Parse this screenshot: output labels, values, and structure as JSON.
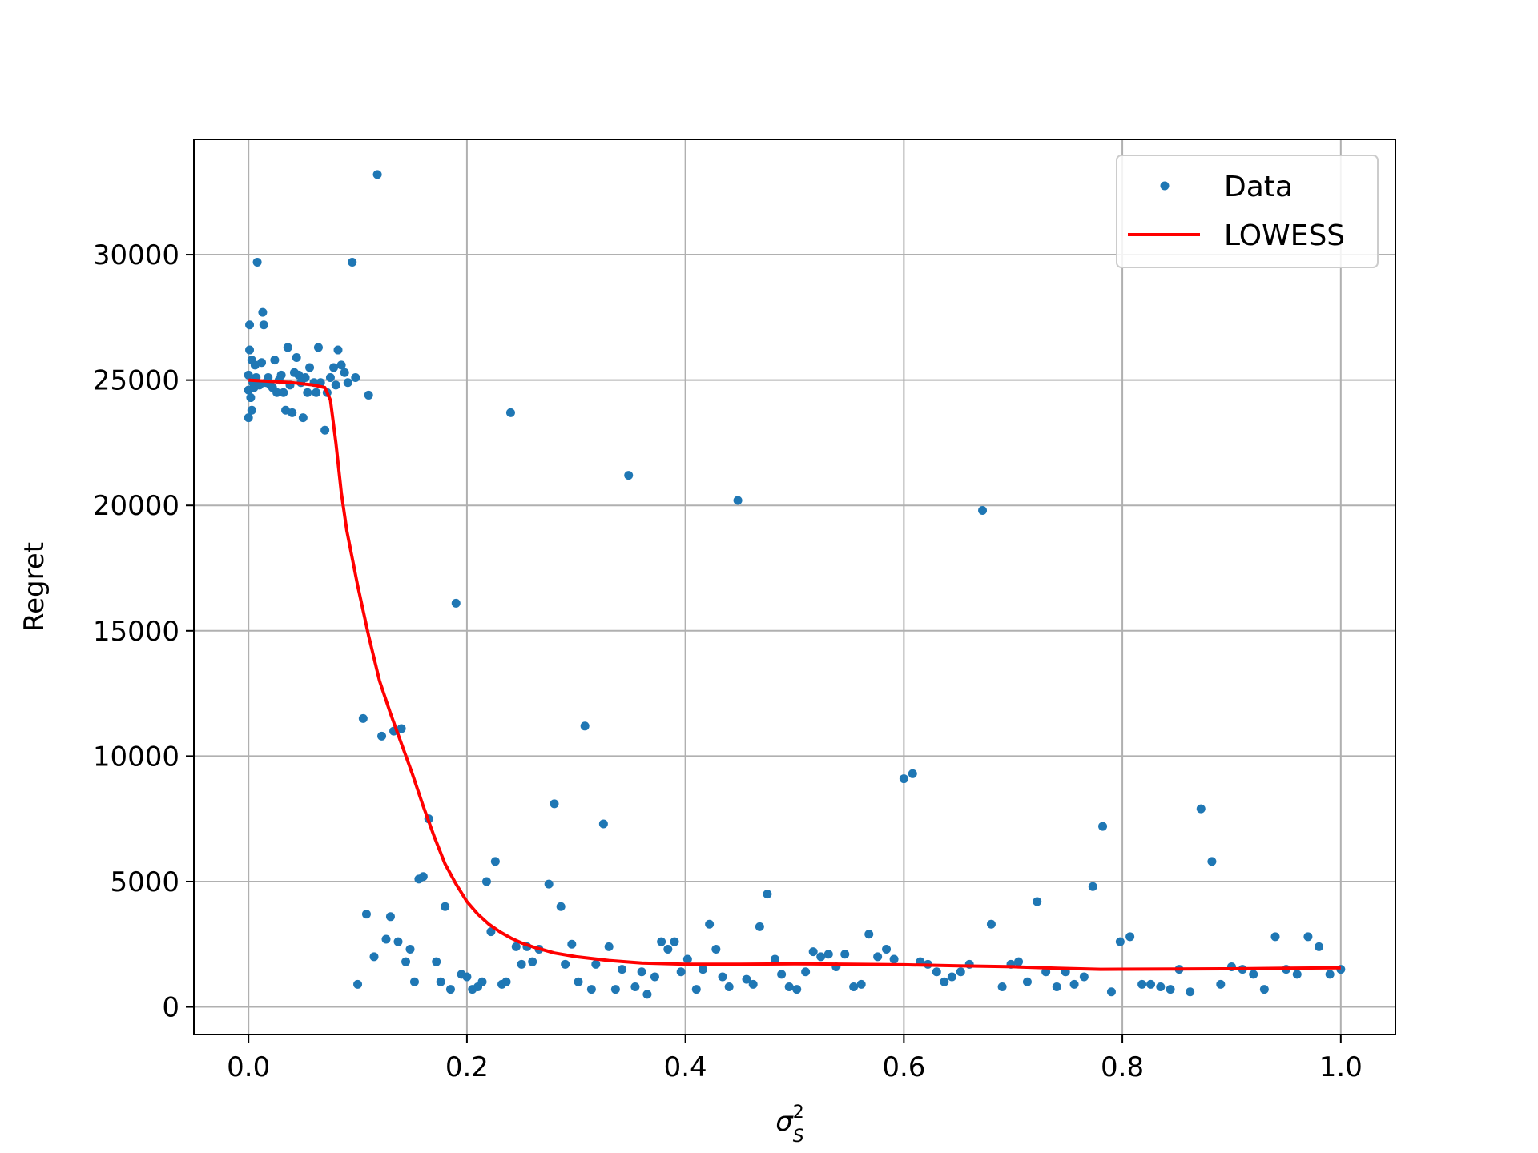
{
  "chart_data": {
    "type": "scatter",
    "title": "",
    "xlabel": "σ",
    "xlabel_sub": "S",
    "xlabel_sup": "2",
    "ylabel": "Regret",
    "xlim": [
      -0.05,
      1.05
    ],
    "ylim": [
      -1100,
      34600
    ],
    "grid": true,
    "legend_position": "top-right",
    "x_ticks": [
      0.0,
      0.2,
      0.4,
      0.6,
      0.8,
      1.0
    ],
    "x_tick_labels": [
      "0.0",
      "0.2",
      "0.4",
      "0.6",
      "0.8",
      "1.0"
    ],
    "y_ticks": [
      0,
      5000,
      10000,
      15000,
      20000,
      25000,
      30000
    ],
    "y_tick_labels": [
      "0",
      "5000",
      "10000",
      "15000",
      "20000",
      "25000",
      "30000"
    ],
    "series": [
      {
        "name": "Data",
        "kind": "scatter",
        "color": "#1f77b4",
        "points": [
          [
            0.0,
            24600
          ],
          [
            0.0,
            25200
          ],
          [
            0.0,
            23500
          ],
          [
            0.001,
            27200
          ],
          [
            0.001,
            26200
          ],
          [
            0.002,
            24300
          ],
          [
            0.003,
            25800
          ],
          [
            0.003,
            23800
          ],
          [
            0.004,
            24900
          ],
          [
            0.005,
            24700
          ],
          [
            0.006,
            25600
          ],
          [
            0.007,
            25100
          ],
          [
            0.008,
            29700
          ],
          [
            0.01,
            24800
          ],
          [
            0.012,
            25700
          ],
          [
            0.013,
            27700
          ],
          [
            0.014,
            27200
          ],
          [
            0.016,
            24900
          ],
          [
            0.018,
            25100
          ],
          [
            0.02,
            24800
          ],
          [
            0.022,
            24700
          ],
          [
            0.024,
            25800
          ],
          [
            0.026,
            24500
          ],
          [
            0.028,
            25000
          ],
          [
            0.03,
            25200
          ],
          [
            0.032,
            24500
          ],
          [
            0.034,
            23800
          ],
          [
            0.036,
            26300
          ],
          [
            0.038,
            24800
          ],
          [
            0.04,
            23700
          ],
          [
            0.042,
            25300
          ],
          [
            0.044,
            25900
          ],
          [
            0.046,
            25200
          ],
          [
            0.048,
            24900
          ],
          [
            0.05,
            23500
          ],
          [
            0.052,
            25100
          ],
          [
            0.054,
            24500
          ],
          [
            0.056,
            25500
          ],
          [
            0.06,
            24900
          ],
          [
            0.062,
            24500
          ],
          [
            0.064,
            26300
          ],
          [
            0.066,
            24900
          ],
          [
            0.07,
            23000
          ],
          [
            0.072,
            24500
          ],
          [
            0.075,
            25100
          ],
          [
            0.078,
            25500
          ],
          [
            0.08,
            24800
          ],
          [
            0.082,
            26200
          ],
          [
            0.085,
            25600
          ],
          [
            0.088,
            25300
          ],
          [
            0.091,
            24900
          ],
          [
            0.095,
            29700
          ],
          [
            0.098,
            25100
          ],
          [
            0.1,
            900
          ],
          [
            0.105,
            11500
          ],
          [
            0.108,
            3700
          ],
          [
            0.11,
            24400
          ],
          [
            0.115,
            2000
          ],
          [
            0.118,
            33200
          ],
          [
            0.122,
            10800
          ],
          [
            0.126,
            2700
          ],
          [
            0.13,
            3600
          ],
          [
            0.133,
            11000
          ],
          [
            0.137,
            2600
          ],
          [
            0.14,
            11100
          ],
          [
            0.144,
            1800
          ],
          [
            0.148,
            2300
          ],
          [
            0.152,
            1000
          ],
          [
            0.156,
            5100
          ],
          [
            0.16,
            5200
          ],
          [
            0.165,
            7500
          ],
          [
            0.172,
            1800
          ],
          [
            0.176,
            1000
          ],
          [
            0.18,
            4000
          ],
          [
            0.185,
            700
          ],
          [
            0.19,
            16100
          ],
          [
            0.195,
            1300
          ],
          [
            0.2,
            1200
          ],
          [
            0.205,
            700
          ],
          [
            0.21,
            800
          ],
          [
            0.214,
            1000
          ],
          [
            0.218,
            5000
          ],
          [
            0.222,
            3000
          ],
          [
            0.226,
            5800
          ],
          [
            0.232,
            900
          ],
          [
            0.236,
            1000
          ],
          [
            0.24,
            23700
          ],
          [
            0.245,
            2400
          ],
          [
            0.25,
            1700
          ],
          [
            0.255,
            2400
          ],
          [
            0.26,
            1800
          ],
          [
            0.266,
            2300
          ],
          [
            0.275,
            4900
          ],
          [
            0.28,
            8100
          ],
          [
            0.286,
            4000
          ],
          [
            0.29,
            1700
          ],
          [
            0.296,
            2500
          ],
          [
            0.302,
            1000
          ],
          [
            0.308,
            11200
          ],
          [
            0.314,
            700
          ],
          [
            0.318,
            1700
          ],
          [
            0.325,
            7300
          ],
          [
            0.33,
            2400
          ],
          [
            0.336,
            700
          ],
          [
            0.342,
            1500
          ],
          [
            0.348,
            21200
          ],
          [
            0.354,
            800
          ],
          [
            0.36,
            1400
          ],
          [
            0.365,
            500
          ],
          [
            0.372,
            1200
          ],
          [
            0.378,
            2600
          ],
          [
            0.384,
            2300
          ],
          [
            0.39,
            2600
          ],
          [
            0.396,
            1400
          ],
          [
            0.402,
            1900
          ],
          [
            0.41,
            700
          ],
          [
            0.416,
            1500
          ],
          [
            0.422,
            3300
          ],
          [
            0.428,
            2300
          ],
          [
            0.434,
            1200
          ],
          [
            0.44,
            800
          ],
          [
            0.448,
            20200
          ],
          [
            0.456,
            1100
          ],
          [
            0.462,
            900
          ],
          [
            0.468,
            3200
          ],
          [
            0.475,
            4500
          ],
          [
            0.482,
            1900
          ],
          [
            0.488,
            1300
          ],
          [
            0.495,
            800
          ],
          [
            0.502,
            700
          ],
          [
            0.51,
            1400
          ],
          [
            0.517,
            2200
          ],
          [
            0.524,
            2000
          ],
          [
            0.531,
            2100
          ],
          [
            0.538,
            1600
          ],
          [
            0.546,
            2100
          ],
          [
            0.554,
            800
          ],
          [
            0.561,
            900
          ],
          [
            0.568,
            2900
          ],
          [
            0.576,
            2000
          ],
          [
            0.584,
            2300
          ],
          [
            0.591,
            1900
          ],
          [
            0.6,
            9100
          ],
          [
            0.608,
            9300
          ],
          [
            0.615,
            1800
          ],
          [
            0.622,
            1700
          ],
          [
            0.63,
            1400
          ],
          [
            0.637,
            1000
          ],
          [
            0.644,
            1200
          ],
          [
            0.652,
            1400
          ],
          [
            0.66,
            1700
          ],
          [
            0.672,
            19800
          ],
          [
            0.68,
            3300
          ],
          [
            0.69,
            800
          ],
          [
            0.698,
            1700
          ],
          [
            0.705,
            1800
          ],
          [
            0.713,
            1000
          ],
          [
            0.722,
            4200
          ],
          [
            0.73,
            1400
          ],
          [
            0.74,
            800
          ],
          [
            0.748,
            1400
          ],
          [
            0.756,
            900
          ],
          [
            0.765,
            1200
          ],
          [
            0.773,
            4800
          ],
          [
            0.782,
            7200
          ],
          [
            0.79,
            600
          ],
          [
            0.798,
            2600
          ],
          [
            0.807,
            2800
          ],
          [
            0.818,
            900
          ],
          [
            0.826,
            900
          ],
          [
            0.835,
            800
          ],
          [
            0.844,
            700
          ],
          [
            0.852,
            1500
          ],
          [
            0.862,
            600
          ],
          [
            0.872,
            7900
          ],
          [
            0.882,
            5800
          ],
          [
            0.89,
            900
          ],
          [
            0.9,
            1600
          ],
          [
            0.91,
            1500
          ],
          [
            0.92,
            1300
          ],
          [
            0.93,
            700
          ],
          [
            0.94,
            2800
          ],
          [
            0.95,
            1500
          ],
          [
            0.96,
            1300
          ],
          [
            0.97,
            2800
          ],
          [
            0.98,
            2400
          ],
          [
            0.99,
            1300
          ],
          [
            1.0,
            1500
          ]
        ]
      },
      {
        "name": "LOWESS",
        "kind": "line",
        "color": "#ff0000",
        "points": [
          [
            0.0,
            25000
          ],
          [
            0.02,
            24950
          ],
          [
            0.04,
            24900
          ],
          [
            0.06,
            24800
          ],
          [
            0.07,
            24700
          ],
          [
            0.075,
            24200
          ],
          [
            0.08,
            22500
          ],
          [
            0.085,
            20500
          ],
          [
            0.09,
            19000
          ],
          [
            0.1,
            16800
          ],
          [
            0.11,
            14800
          ],
          [
            0.12,
            13000
          ],
          [
            0.13,
            11700
          ],
          [
            0.14,
            10500
          ],
          [
            0.15,
            9300
          ],
          [
            0.16,
            8000
          ],
          [
            0.17,
            6800
          ],
          [
            0.18,
            5700
          ],
          [
            0.19,
            4900
          ],
          [
            0.2,
            4200
          ],
          [
            0.21,
            3700
          ],
          [
            0.22,
            3300
          ],
          [
            0.23,
            3000
          ],
          [
            0.24,
            2750
          ],
          [
            0.25,
            2550
          ],
          [
            0.26,
            2400
          ],
          [
            0.28,
            2150
          ],
          [
            0.3,
            2000
          ],
          [
            0.33,
            1850
          ],
          [
            0.36,
            1750
          ],
          [
            0.4,
            1700
          ],
          [
            0.45,
            1700
          ],
          [
            0.5,
            1720
          ],
          [
            0.55,
            1700
          ],
          [
            0.6,
            1680
          ],
          [
            0.65,
            1640
          ],
          [
            0.7,
            1600
          ],
          [
            0.74,
            1540
          ],
          [
            0.78,
            1500
          ],
          [
            0.85,
            1510
          ],
          [
            0.9,
            1520
          ],
          [
            0.95,
            1540
          ],
          [
            1.0,
            1560
          ]
        ]
      }
    ]
  }
}
